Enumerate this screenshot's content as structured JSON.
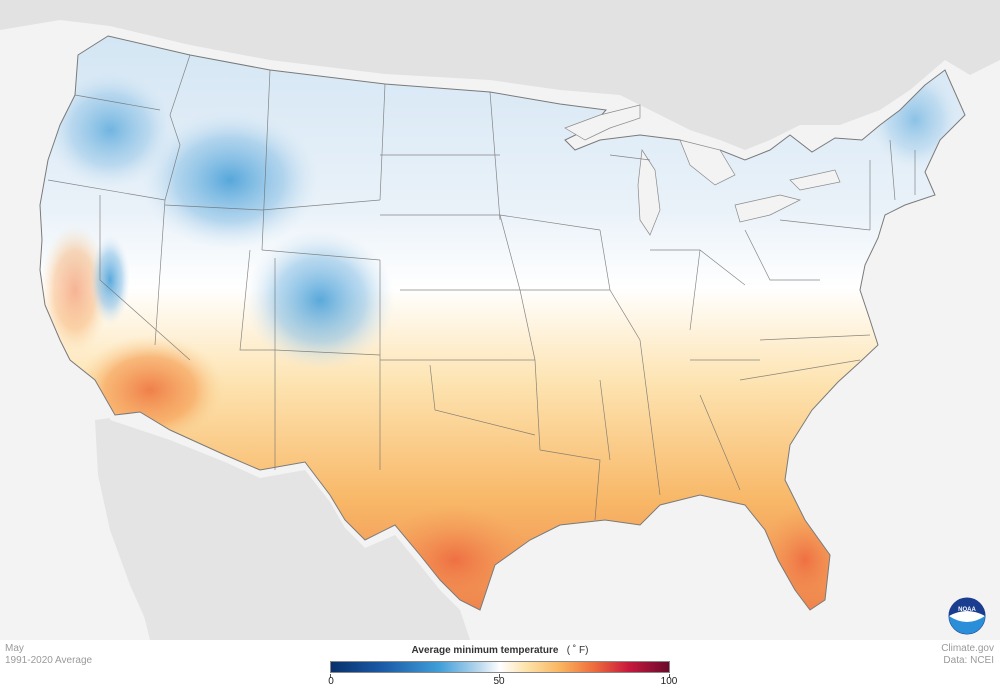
{
  "map": {
    "month": "May",
    "period": "1991-2020 Average",
    "credit_line1": "Climate.gov",
    "credit_line2": "Data: NCEI",
    "logo_text": "NOAA",
    "legend": {
      "title": "Average minimum temperature",
      "unit": "( ˚ F)",
      "ticks": [
        "0",
        "50",
        "100"
      ],
      "range": [
        0,
        100
      ],
      "colors": [
        "#08306b",
        "#3f9ed8",
        "#ffffff",
        "#f9b45e",
        "#ee6b3c",
        "#6a0a2c"
      ]
    },
    "background_color": "#f3f3f3",
    "land_color": "#e4e4e4",
    "border_color": "#6b6b6b"
  }
}
